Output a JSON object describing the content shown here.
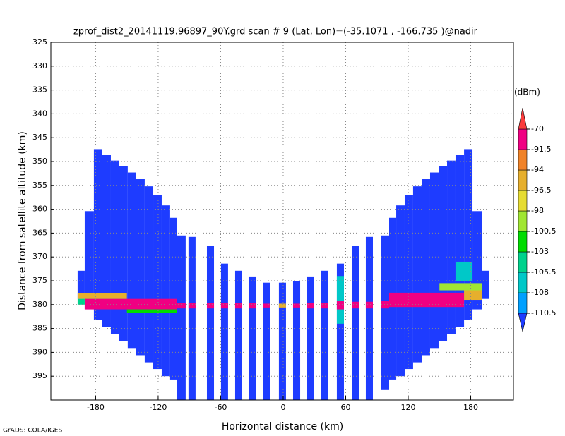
{
  "chart_data": {
    "type": "shaded",
    "title": "zprof_dist2_20141119.96897_90Y.grd  scan # 9  (Lat, Lon)=(-35.1071 , -166.735 )@nadir",
    "x_label": "Horizontal distance (km)",
    "y_label": "Distance from satellite altitude (km)",
    "credit": "GrADS: COLA/IGES",
    "colorbar_title": "(dBm)",
    "xlim": [
      -223,
      221
    ],
    "xticks": [
      -180,
      -120,
      -60,
      0,
      60,
      120,
      180
    ],
    "ylim": [
      325,
      400
    ],
    "y_inverted": true,
    "yticks": [
      325,
      330,
      335,
      340,
      345,
      350,
      355,
      360,
      365,
      370,
      375,
      380,
      385,
      390,
      395
    ],
    "grid": true,
    "levels": [
      -110.5,
      -108,
      -105.5,
      -103,
      -100.5,
      -98,
      -96.5,
      -94,
      -91.5,
      -70
    ],
    "colors": [
      "#1e3cff",
      "#00a0ff",
      "#00c8c8",
      "#00d28c",
      "#00dc00",
      "#a0e632",
      "#e6dc32",
      "#e6af2d",
      "#f08228",
      "#f00082",
      "#fa3c3c"
    ],
    "cells": [
      [
        -197.3,
        -190.5,
        372.9,
        378.8,
        -115
      ],
      [
        -190.5,
        -181.7,
        360.4,
        381.0,
        -115
      ],
      [
        -181.7,
        -173.6,
        347.4,
        383.2,
        -115
      ],
      [
        -173.6,
        -165.4,
        348.6,
        384.7,
        -115
      ],
      [
        -165.4,
        -157.3,
        349.8,
        386.2,
        -115
      ],
      [
        -157.3,
        -149.2,
        350.9,
        387.6,
        -115
      ],
      [
        -149.2,
        -141.0,
        352.3,
        389.1,
        -115
      ],
      [
        -141.0,
        -132.9,
        353.7,
        390.6,
        -115
      ],
      [
        -132.9,
        -124.7,
        355.2,
        392.1,
        -115
      ],
      [
        -124.7,
        -116.6,
        357.1,
        393.5,
        -115
      ],
      [
        -116.6,
        -108.5,
        359.2,
        395.0,
        -115
      ],
      [
        -108.5,
        -101.7,
        361.8,
        395.7,
        -115
      ],
      [
        -101.7,
        -93.6,
        365.5,
        400,
        -115
      ],
      [
        -90.9,
        -84.1,
        365.8,
        400,
        -115
      ],
      [
        -73.2,
        -66.4,
        367.7,
        400,
        -115
      ],
      [
        -59.7,
        -52.9,
        371.4,
        400,
        -115
      ],
      [
        -46.1,
        -39.3,
        372.9,
        400,
        -115
      ],
      [
        -33.2,
        -26.4,
        374.1,
        400,
        -115
      ],
      [
        -19.0,
        -12.2,
        375.4,
        400,
        -115
      ],
      [
        -4.1,
        2.7,
        375.4,
        400,
        -115
      ],
      [
        9.5,
        16.3,
        375.1,
        400,
        -115
      ],
      [
        23.0,
        29.8,
        374.1,
        400,
        -115
      ],
      [
        36.6,
        43.4,
        372.9,
        400,
        -115
      ],
      [
        51.5,
        58.3,
        371.4,
        400,
        -115
      ],
      [
        66.4,
        73.2,
        367.7,
        400,
        -115
      ],
      [
        79.3,
        86.1,
        365.8,
        400,
        -115
      ],
      [
        93.6,
        101.7,
        365.5,
        397.9,
        -115
      ],
      [
        101.7,
        108.5,
        361.8,
        395.7,
        -115
      ],
      [
        108.5,
        116.6,
        359.2,
        395.0,
        -115
      ],
      [
        116.6,
        124.7,
        357.1,
        393.5,
        -115
      ],
      [
        124.7,
        132.9,
        355.2,
        392.1,
        -115
      ],
      [
        132.9,
        141.0,
        353.7,
        390.6,
        -115
      ],
      [
        141.0,
        149.2,
        352.3,
        389.1,
        -115
      ],
      [
        149.2,
        157.3,
        350.9,
        387.6,
        -115
      ],
      [
        157.3,
        165.4,
        349.8,
        386.2,
        -115
      ],
      [
        165.4,
        173.6,
        348.6,
        384.7,
        -115
      ],
      [
        173.6,
        181.7,
        347.4,
        383.2,
        -115
      ],
      [
        181.7,
        190.5,
        360.4,
        381.0,
        -115
      ],
      [
        190.5,
        197.3,
        372.9,
        378.8,
        -115
      ],
      [
        -190.5,
        -101.7,
        378.8,
        381.0,
        -85
      ],
      [
        -197.3,
        -150,
        377.6,
        378.8,
        -96
      ],
      [
        -150,
        -101.7,
        381.0,
        381.8,
        -102
      ],
      [
        -197.3,
        -190.5,
        378.8,
        380.0,
        -104
      ],
      [
        -101.7,
        -93.6,
        379.6,
        380.8,
        -85
      ],
      [
        -90.9,
        -84.1,
        379.6,
        380.8,
        -85
      ],
      [
        -73.2,
        -66.4,
        379.6,
        380.8,
        -85
      ],
      [
        -59.7,
        -52.9,
        379.6,
        380.8,
        -85
      ],
      [
        -46.1,
        -39.3,
        379.6,
        380.8,
        -85
      ],
      [
        -33.2,
        -26.4,
        379.6,
        380.8,
        -85
      ],
      [
        -19.0,
        -12.2,
        379.8,
        380.6,
        -85
      ],
      [
        -4.1,
        2.7,
        379.8,
        380.6,
        -95
      ],
      [
        9.5,
        16.3,
        379.8,
        380.6,
        -85
      ],
      [
        23.0,
        29.8,
        379.6,
        380.8,
        -85
      ],
      [
        36.6,
        43.4,
        379.6,
        380.8,
        -85
      ],
      [
        51.5,
        58.3,
        374.0,
        384.0,
        -107
      ],
      [
        51.5,
        58.3,
        379.2,
        381.0,
        -85
      ],
      [
        66.4,
        73.2,
        379.4,
        380.8,
        -85
      ],
      [
        79.3,
        86.1,
        379.4,
        380.8,
        -85
      ],
      [
        93.6,
        101.7,
        379.2,
        380.8,
        -85
      ],
      [
        101.7,
        173.6,
        377.5,
        380.5,
        -85
      ],
      [
        173.6,
        190.5,
        376.5,
        379.0,
        -96
      ],
      [
        150,
        190.5,
        375.5,
        377.0,
        -100
      ],
      [
        165.4,
        181.7,
        371.0,
        375.0,
        -107
      ]
    ]
  }
}
